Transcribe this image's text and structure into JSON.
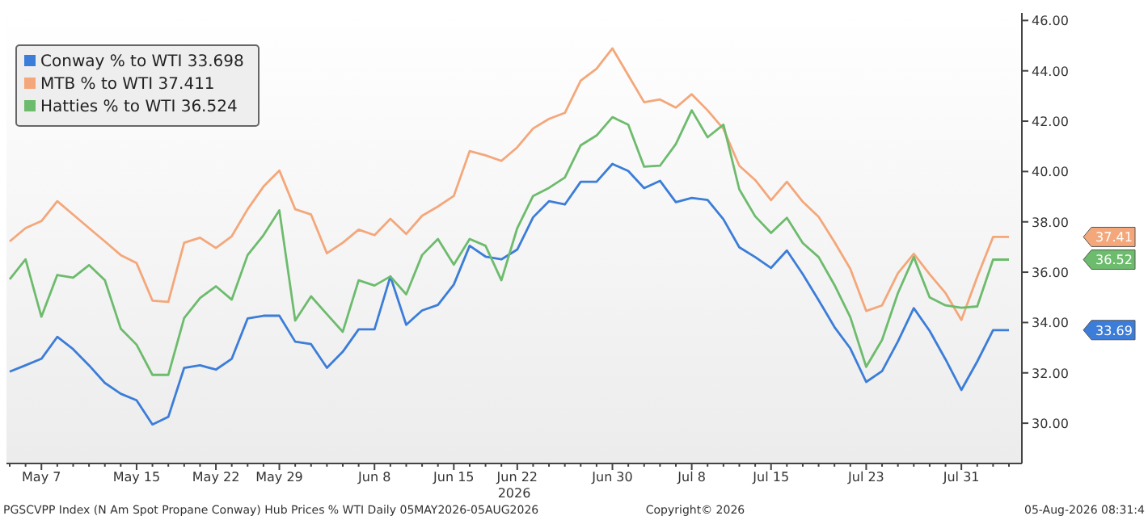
{
  "chart_data": {
    "type": "line",
    "xlabel": "2026",
    "categories": [
      null,
      null,
      "May 7",
      null,
      null,
      null,
      null,
      null,
      "May 15",
      null,
      null,
      null,
      null,
      "May 22",
      null,
      null,
      null,
      "May 29",
      null,
      null,
      null,
      null,
      null,
      "Jun 8",
      null,
      null,
      null,
      null,
      "Jun 15",
      null,
      null,
      null,
      "Jun 22",
      null,
      null,
      null,
      null,
      null,
      "Jun 30",
      null,
      null,
      null,
      null,
      "Jul 8",
      null,
      null,
      null,
      null,
      "Jul 15",
      null,
      null,
      null,
      null,
      null,
      "Jul 23",
      null,
      null,
      null,
      null,
      null,
      "Jul 31",
      null,
      null,
      null
    ],
    "series": [
      {
        "name": "Conway % to WTI 33.698",
        "color": "#3b7dd8",
        "values": [
          32.05,
          32.3,
          32.56,
          33.43,
          32.94,
          32.3,
          31.6,
          31.17,
          30.91,
          29.95,
          30.25,
          32.2,
          32.3,
          32.13,
          32.56,
          34.16,
          34.27,
          34.27,
          33.24,
          33.14,
          32.2,
          32.84,
          33.73,
          33.73,
          35.83,
          33.91,
          34.48,
          34.7,
          35.51,
          37.05,
          36.62,
          36.51,
          36.9,
          38.18,
          38.82,
          38.69,
          39.59,
          39.59,
          40.3,
          40.02,
          39.34,
          39.63,
          38.78,
          38.95,
          38.87,
          38.1,
          36.99,
          36.6,
          36.17,
          36.86,
          35.92,
          34.89,
          33.82,
          32.97,
          31.64,
          32.07,
          33.25,
          34.57,
          33.67,
          32.54,
          31.32,
          32.45,
          33.7,
          33.7
        ]
      },
      {
        "name": "MTB % to WTI 37.411",
        "color": "#f4a77a",
        "values": [
          37.22,
          37.75,
          38.03,
          38.82,
          38.29,
          37.75,
          37.22,
          36.68,
          36.36,
          34.87,
          34.82,
          37.17,
          37.37,
          36.96,
          37.43,
          38.5,
          39.4,
          40.04,
          38.5,
          38.29,
          36.75,
          37.17,
          37.69,
          37.47,
          38.12,
          37.52,
          38.24,
          38.61,
          39.03,
          40.81,
          40.64,
          40.42,
          40.96,
          41.71,
          42.09,
          42.33,
          43.61,
          44.08,
          44.89,
          43.82,
          42.75,
          42.86,
          42.54,
          43.07,
          42.43,
          41.69,
          40.23,
          39.66,
          38.86,
          39.59,
          38.8,
          38.2,
          37.2,
          36.13,
          34.46,
          34.68,
          35.96,
          36.73,
          35.92,
          35.17,
          34.1,
          35.81,
          37.4,
          37.4
        ]
      },
      {
        "name": "Hatties % to WTI 36.524",
        "color": "#6dbb6d",
        "values": [
          35.72,
          36.51,
          34.23,
          35.89,
          35.78,
          36.28,
          35.68,
          33.76,
          33.12,
          31.92,
          31.92,
          34.18,
          34.97,
          35.44,
          34.91,
          36.68,
          37.47,
          38.46,
          34.08,
          35.04,
          34.33,
          33.63,
          35.68,
          35.47,
          35.83,
          35.12,
          36.68,
          37.32,
          36.3,
          37.32,
          37.05,
          35.68,
          37.75,
          39.03,
          39.35,
          39.76,
          41.04,
          41.43,
          42.16,
          41.86,
          40.19,
          40.23,
          41.09,
          42.43,
          41.36,
          41.86,
          39.29,
          38.22,
          37.56,
          38.16,
          37.16,
          36.6,
          35.49,
          34.21,
          32.24,
          33.31,
          35.17,
          36.6,
          35.0,
          34.68,
          34.59,
          34.64,
          36.5,
          36.5
        ]
      }
    ],
    "ylim": [
      28.4,
      46.3
    ],
    "yticks": [
      {
        "value": 30,
        "label": "30.00"
      },
      {
        "value": 32,
        "label": "32.00"
      },
      {
        "value": 34,
        "label": "34.00"
      },
      {
        "value": 36,
        "label": "36.00"
      },
      {
        "value": 38,
        "label": "38.00"
      },
      {
        "value": 40,
        "label": "40.00"
      },
      {
        "value": 42,
        "label": "42.00"
      },
      {
        "value": 44,
        "label": "44.00"
      },
      {
        "value": 46,
        "label": "46.00"
      }
    ],
    "grid": false,
    "legend": "top left",
    "annotations": [
      "33.69",
      "37.41",
      "36.52",
      "PGSCVPP Index (N Am Spot Propane Conway) Hub Prices % WTI Daily 05MAY2026-05AUG2026",
      "Copyright© 2026",
      "05-Aug-2026 08:31:4"
    ]
  }
}
